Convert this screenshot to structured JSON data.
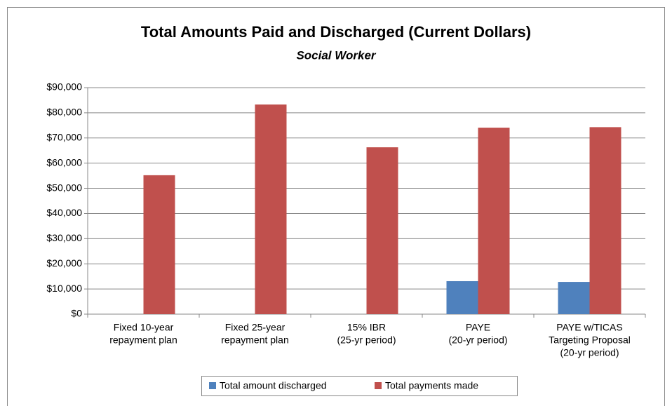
{
  "chart_data": {
    "type": "bar",
    "title": "Total Amounts Paid and Discharged (Current Dollars)",
    "subtitle": "Social Worker",
    "categories": [
      [
        "Fixed 10-year",
        "repayment plan"
      ],
      [
        "Fixed 25-year",
        "repayment plan"
      ],
      [
        "15% IBR",
        "(25-yr period)"
      ],
      [
        "PAYE",
        "(20-yr period)"
      ],
      [
        "PAYE w/TICAS",
        "Targeting Proposal",
        "(20-yr period)"
      ]
    ],
    "series": [
      {
        "name": "Total amount discharged",
        "color": "#4f81bd",
        "values": [
          0,
          0,
          0,
          13100,
          12800
        ]
      },
      {
        "name": "Total payments made",
        "color": "#c0504d",
        "values": [
          55200,
          83300,
          66300,
          74100,
          74300
        ]
      }
    ],
    "ylim": [
      0,
      90000
    ],
    "yticks": [
      {
        "value": 0,
        "label": "$0"
      },
      {
        "value": 10000,
        "label": "$10,000"
      },
      {
        "value": 20000,
        "label": "$20,000"
      },
      {
        "value": 30000,
        "label": "$30,000"
      },
      {
        "value": 40000,
        "label": "$40,000"
      },
      {
        "value": 50000,
        "label": "$50,000"
      },
      {
        "value": 60000,
        "label": "$60,000"
      },
      {
        "value": 70000,
        "label": "$70,000"
      },
      {
        "value": 80000,
        "label": "$80,000"
      },
      {
        "value": 90000,
        "label": "$90,000"
      }
    ],
    "grid": true,
    "legend": "bottom"
  }
}
